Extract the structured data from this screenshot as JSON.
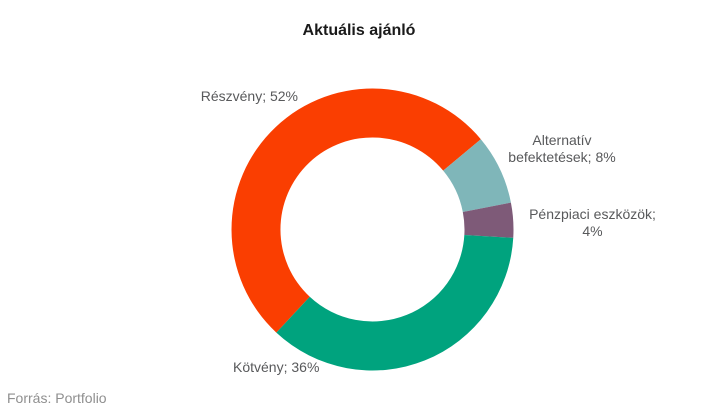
{
  "chart_data": {
    "type": "pie",
    "subtype": "donut",
    "title": "Aktuális ajánló",
    "unit": "%",
    "slices": [
      {
        "id": "reszveny",
        "label": "Részvény",
        "value": 52,
        "color": "#fa3e01",
        "label_lines": [
          "Részvény; 52%"
        ]
      },
      {
        "id": "alternativ-befektetesek",
        "label": "Alternatív befektetések",
        "value": 8,
        "color": "#7fb6b9",
        "label_lines": [
          "Alternatív",
          "befektetések; 8%"
        ]
      },
      {
        "id": "penzpiaci-eszkozok",
        "label": "Pénzpiaci eszközök",
        "value": 4,
        "color": "#7e5a78",
        "label_lines": [
          "Pénzpiaci eszközök;",
          "4%"
        ]
      },
      {
        "id": "kotveny",
        "label": "Kötvény",
        "value": 36,
        "color": "#00a37e",
        "label_lines": [
          "Kötvény; 36%"
        ]
      }
    ],
    "layout": {
      "start_angle_deg": 223,
      "inner_radius_ratio": 0.65,
      "legend": "none",
      "labels": "outside"
    }
  },
  "source": "Forrás: Portfolio",
  "colors": {
    "title_text": "#1a1a1a",
    "label_text": "#58595b",
    "source_text": "#8f8f8f",
    "background": "#ffffff"
  }
}
